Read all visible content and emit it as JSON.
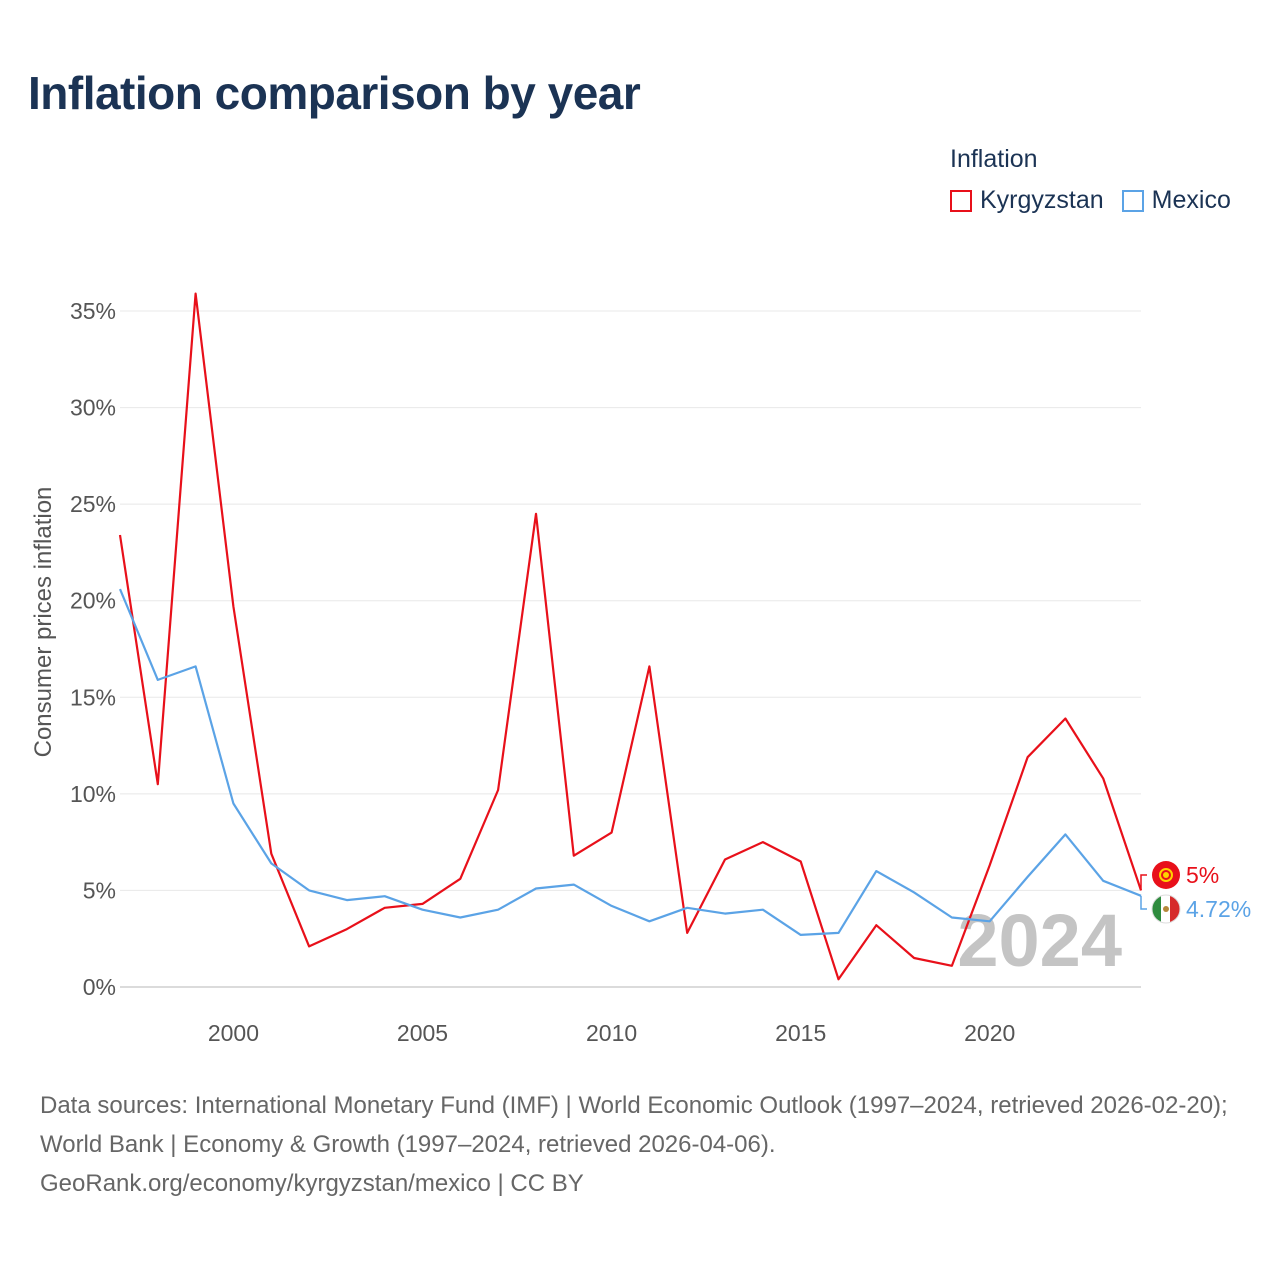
{
  "title": "Inflation comparison by year",
  "legend": {
    "title": "Inflation",
    "items": [
      {
        "label": "Kyrgyzstan",
        "color": "#e8101a"
      },
      {
        "label": "Mexico",
        "color": "#5ba3e6"
      }
    ]
  },
  "watermark_year": "2024",
  "end_labels": {
    "kyrgyzstan": "5%",
    "mexico": "4.72%"
  },
  "chart_data": {
    "type": "line",
    "title": "Inflation comparison by year",
    "xlabel": "",
    "ylabel": "Consumer prices inflation",
    "xlim": [
      1997,
      2024
    ],
    "ylim": [
      0,
      36
    ],
    "x_ticks": [
      2000,
      2005,
      2010,
      2015,
      2020
    ],
    "y_ticks": [
      0,
      5,
      10,
      15,
      20,
      25,
      30,
      35
    ],
    "y_tick_format": "%",
    "grid": true,
    "legend_position": "top-right",
    "x": [
      1997,
      1998,
      1999,
      2000,
      2001,
      2002,
      2003,
      2004,
      2005,
      2006,
      2007,
      2008,
      2009,
      2010,
      2011,
      2012,
      2013,
      2014,
      2015,
      2016,
      2017,
      2018,
      2019,
      2020,
      2021,
      2022,
      2023,
      2024
    ],
    "series": [
      {
        "name": "Kyrgyzstan",
        "color": "#e8101a",
        "values": [
          23.4,
          10.5,
          35.9,
          19.7,
          6.9,
          2.1,
          3.0,
          4.1,
          4.3,
          5.6,
          10.2,
          24.5,
          6.8,
          8.0,
          16.6,
          2.8,
          6.6,
          7.5,
          6.5,
          0.4,
          3.2,
          1.5,
          1.1,
          6.3,
          11.9,
          13.9,
          10.8,
          5.0
        ]
      },
      {
        "name": "Mexico",
        "color": "#5ba3e6",
        "values": [
          20.6,
          15.9,
          16.6,
          9.5,
          6.4,
          5.0,
          4.5,
          4.7,
          4.0,
          3.6,
          4.0,
          5.1,
          5.3,
          4.2,
          3.4,
          4.1,
          3.8,
          4.0,
          2.7,
          2.8,
          6.0,
          4.9,
          3.6,
          3.4,
          5.7,
          7.9,
          5.5,
          4.72
        ]
      }
    ]
  },
  "sources": {
    "line1": "Data sources: International Monetary Fund (IMF) | World Economic Outlook (1997–2024, retrieved 2026-02-20); World Bank | Economy & Growth (1997–2024, retrieved 2026-04-06).",
    "line2": "GeoRank.org/economy/kyrgyzstan/mexico | CC BY"
  }
}
